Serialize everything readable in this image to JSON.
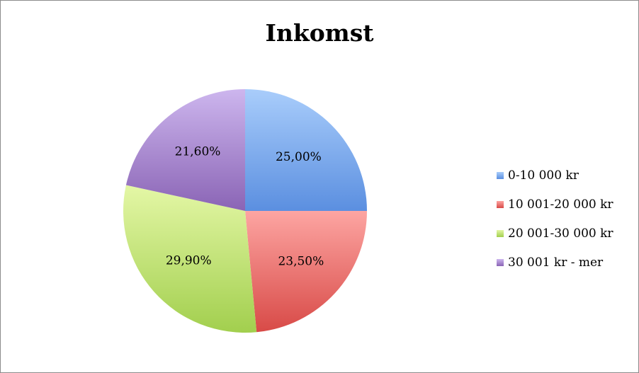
{
  "chart_data": {
    "type": "pie",
    "title": "Inkomst",
    "categories": [
      "0-10 000 kr",
      "10 001-20 000 kr",
      "20 001-30 000 kr",
      "30 001 kr - mer"
    ],
    "values": [
      25.0,
      23.5,
      29.9,
      21.6
    ],
    "value_labels": [
      "25,00%",
      "23,50%",
      "29,90%",
      "21,60%"
    ],
    "colors": [
      {
        "light": "#a9cdfb",
        "dark": "#5b8fe0"
      },
      {
        "light": "#fda5a2",
        "dark": "#d84a47"
      },
      {
        "light": "#e4f7a6",
        "dark": "#a2cf4e"
      },
      {
        "light": "#cdb6ee",
        "dark": "#8a64b5"
      }
    ],
    "start_angle": "12 o'clock",
    "direction": "clockwise",
    "legend_position": "right"
  }
}
